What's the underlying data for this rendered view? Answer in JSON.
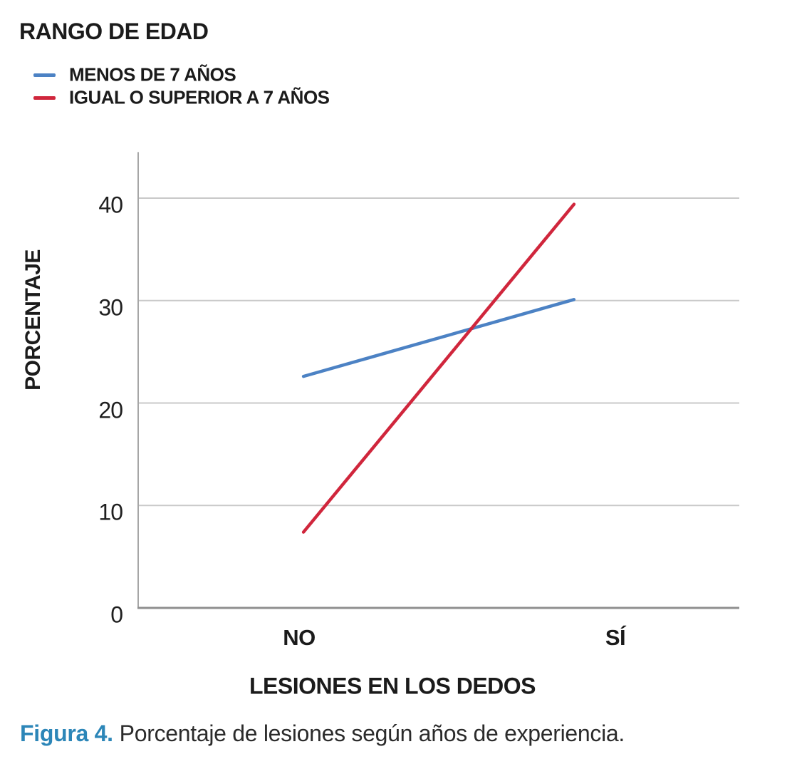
{
  "figure": {
    "caption_label": "Figura 4.",
    "caption_text": "Porcentaje de lesiones según años de experiencia."
  },
  "chart_data": {
    "type": "line",
    "title": "RANGO DE EDAD",
    "categories": [
      "NO",
      "SÍ"
    ],
    "series": [
      {
        "name": "MENOS DE 7 AÑOS",
        "color": "#4C82C4",
        "values": [
          22.6,
          30.1
        ]
      },
      {
        "name": "IGUAL O SUPERIOR A 7 AÑOS",
        "color": "#D0263C",
        "values": [
          7.4,
          39.4
        ]
      }
    ],
    "xlabel": "LESIONES EN LOS DEDOS",
    "ylabel": "PORCENTAJE",
    "yticks": [
      0,
      10,
      20,
      30,
      40
    ],
    "ylim": [
      0,
      44.5
    ],
    "grid": true,
    "legend_position": "top-left",
    "colors": {
      "gridline": "#C9C9C9",
      "y_axis": "#A6A6A6",
      "x_axis": "#8F8F8F",
      "text": "#1b1b1b",
      "caption_accent": "#2c86b8"
    }
  }
}
